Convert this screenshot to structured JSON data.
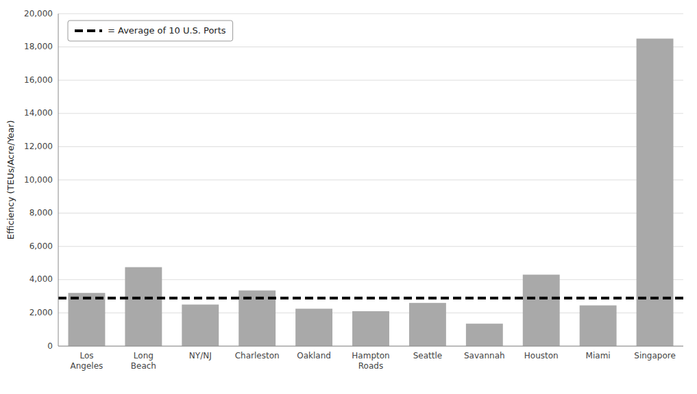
{
  "chart_data": {
    "type": "bar",
    "categories": [
      "Los\nAngeles",
      "Long\nBeach",
      "NY/NJ",
      "Charleston",
      "Oakland",
      "Hampton\nRoads",
      "Seattle",
      "Savannah",
      "Houston",
      "Miami",
      "Singapore"
    ],
    "values": [
      3200,
      4750,
      2500,
      3350,
      2250,
      2100,
      2600,
      1350,
      4300,
      2450,
      18500
    ],
    "color": "#a9a9a9",
    "reference_line": {
      "name": "= Average of 10 U.S. Ports",
      "value": 2890,
      "color": "#000000",
      "line_style": "dashed"
    },
    "ylabel": "Efficiency (TEUs/Acre/Year)",
    "ylim": [
      0,
      20000
    ],
    "yticks": [
      0,
      {
        "value": 2000,
        "label": "2,000"
      },
      {
        "value": 4000,
        "label": "4,000"
      },
      {
        "value": 6000,
        "label": "6,000"
      },
      {
        "value": 8000,
        "label": "8,000"
      },
      {
        "value": 10000,
        "label": "10,000"
      },
      {
        "value": 12000,
        "label": "12,000"
      },
      {
        "value": 14000,
        "label": "14,000"
      },
      {
        "value": 16000,
        "label": "16,000"
      },
      {
        "value": 18000,
        "label": "18,000"
      },
      {
        "value": 20000,
        "label": "20,000"
      }
    ],
    "grid": true,
    "legend": "upper left"
  }
}
